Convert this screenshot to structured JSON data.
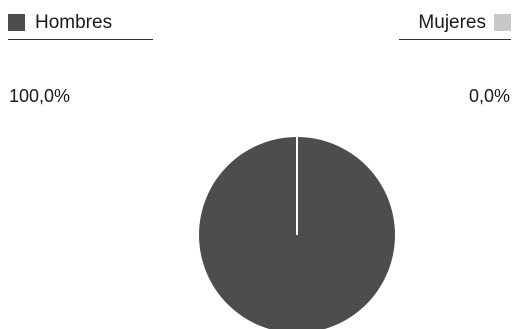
{
  "chart_data": {
    "type": "pie",
    "series": [
      {
        "name": "Hombres",
        "value": 100.0,
        "label": "100,0%",
        "color": "#4d4d4d"
      },
      {
        "name": "Mujeres",
        "value": 0.0,
        "label": "0,0%",
        "color": "#c8c8c8"
      }
    ],
    "legend": "top",
    "separator_color": "#ffffff"
  }
}
